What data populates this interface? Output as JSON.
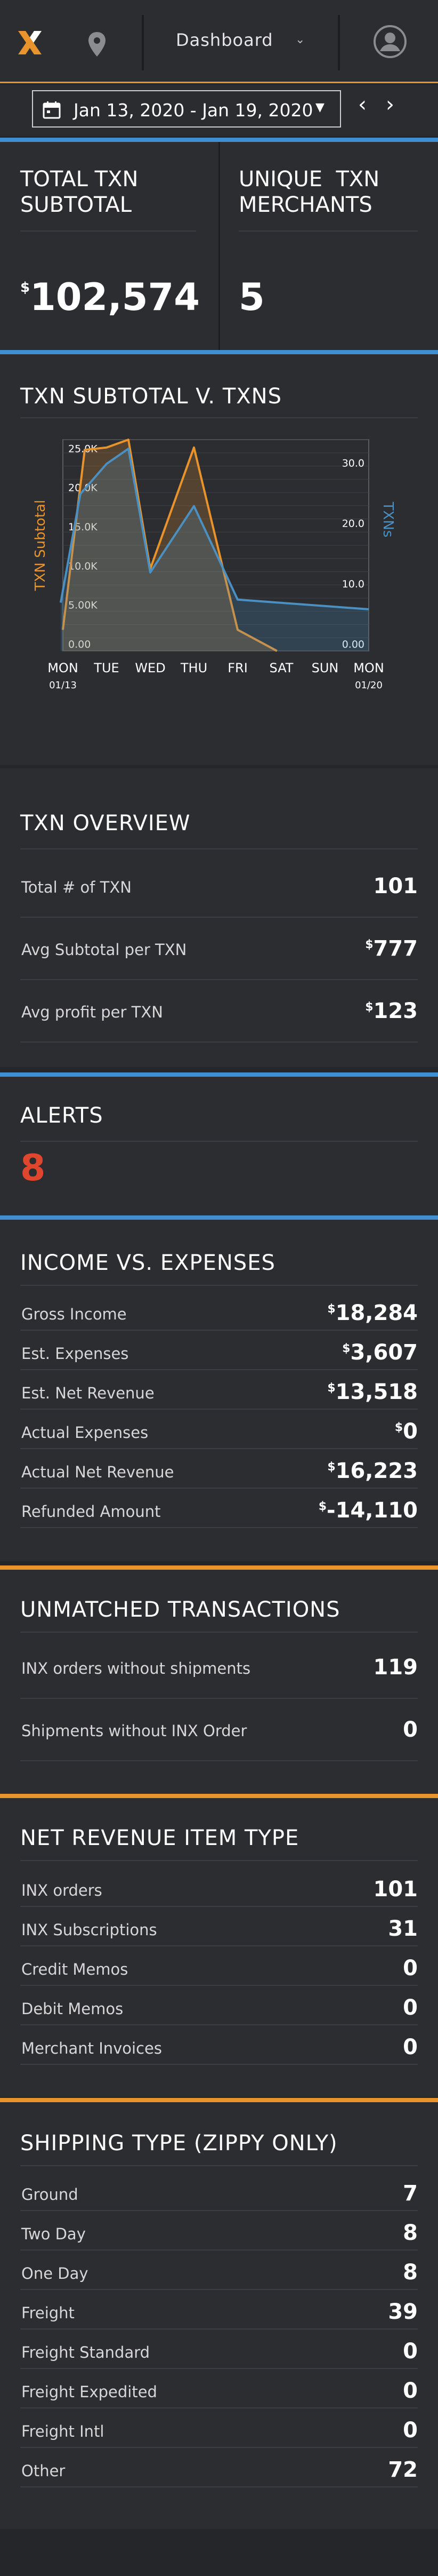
{
  "header": {
    "dashboard_label": "Dashboard",
    "icons": [
      "logo-icon",
      "location-pin-icon",
      "chevron-down-icon",
      "user-avatar-icon"
    ]
  },
  "date_range": {
    "label": "Jan 13, 2020 - Jan 19, 2020",
    "icons": [
      "calendar-icon",
      "caret-down-icon",
      "chevron-left-icon",
      "chevron-right-icon"
    ]
  },
  "kpis": {
    "subtotal": {
      "title_line1": "TOTAL TXN",
      "title_line2": "SUBTOTAL",
      "currency": "$",
      "value": "102,574"
    },
    "merchants": {
      "title_line1": "UNIQUE  TXN",
      "title_line2": "MERCHANTS",
      "value": "5"
    }
  },
  "chart_section": {
    "title": "TXN SUBTOTAL V. TXNS"
  },
  "chart_data": {
    "type": "line",
    "x": [
      "MON 01/13",
      "TUE",
      "WED",
      "THU",
      "FRI",
      "SAT",
      "SUN",
      "MON 01/20"
    ],
    "x_ticks": [
      {
        "line1": "MON",
        "line2": "01/13"
      },
      {
        "line1": "TUE",
        "line2": ""
      },
      {
        "line1": "WED",
        "line2": ""
      },
      {
        "line1": "THU",
        "line2": ""
      },
      {
        "line1": "FRI",
        "line2": ""
      },
      {
        "line1": "SAT",
        "line2": ""
      },
      {
        "line1": "SUN",
        "line2": ""
      },
      {
        "line1": "MON",
        "line2": "01/20"
      }
    ],
    "ylabel_left": "TXN Subtotal",
    "ylabel_right": "TXNs",
    "ylim_left": [
      0,
      27000
    ],
    "ylim_right": [
      0,
      35
    ],
    "yticks_left": [
      "0.00",
      "5.00K",
      "10.0K",
      "15.0K",
      "20.0K",
      "25.0K"
    ],
    "yticks_right": [
      "0.00",
      "10.0",
      "20.0",
      "30.0"
    ],
    "yticks_left_values": [
      0,
      5000,
      10000,
      15000,
      20000,
      25000
    ],
    "yticks_right_values": [
      0,
      10,
      20,
      30
    ],
    "grid": true,
    "series": [
      {
        "name": "TXN Subtotal",
        "axis": "left",
        "color": "#e8932c",
        "points": [
          [
            0,
            2700
          ],
          [
            0.5,
            25700
          ],
          [
            1.0,
            26000
          ],
          [
            1.5,
            27000
          ],
          [
            2.0,
            10500
          ],
          [
            3.0,
            26000
          ],
          [
            4.0,
            2700
          ],
          [
            4.9,
            0
          ]
        ]
      },
      {
        "name": "TXNs",
        "axis": "right",
        "color": "#4a90c2",
        "points": [
          [
            -0.05,
            8
          ],
          [
            0.4,
            26
          ],
          [
            1.0,
            31
          ],
          [
            1.5,
            33.5
          ],
          [
            2.0,
            13
          ],
          [
            3.0,
            24
          ],
          [
            4.0,
            8.5
          ],
          [
            7.0,
            6.9
          ]
        ]
      }
    ]
  },
  "overview": {
    "title": "TXN OVERVIEW",
    "rows": [
      {
        "label": "Total # of TXN",
        "prefix": "",
        "value": "101"
      },
      {
        "label": "Avg Subtotal per TXN",
        "prefix": "$",
        "value": "777"
      },
      {
        "label": "Avg profit per TXN",
        "prefix": "$",
        "value": "123"
      }
    ]
  },
  "alerts": {
    "title": "ALERTS",
    "count": "8",
    "count_color": "#e0452d"
  },
  "income": {
    "title": "INCOME VS. EXPENSES",
    "rows": [
      {
        "label": "Gross Income",
        "prefix": "$",
        "value": "18,284"
      },
      {
        "label": "Est. Expenses",
        "prefix": "$",
        "value": "3,607"
      },
      {
        "label": "Est. Net Revenue",
        "prefix": "$",
        "value": "13,518"
      },
      {
        "label": "Actual Expenses",
        "prefix": "$",
        "value": "0"
      },
      {
        "label": "Actual Net Revenue",
        "prefix": "$",
        "value": "16,223"
      },
      {
        "label": "Refunded Amount",
        "prefix": "$",
        "value": "-14,110"
      }
    ]
  },
  "unmatched": {
    "title": "UNMATCHED TRANSACTIONS",
    "rows": [
      {
        "label": "INX orders without shipments",
        "prefix": "",
        "value": "119"
      },
      {
        "label": "Shipments without INX Order",
        "prefix": "",
        "value": "0"
      }
    ]
  },
  "net_revenue": {
    "title": "NET REVENUE ITEM TYPE",
    "rows": [
      {
        "label": "INX orders",
        "prefix": "",
        "value": "101"
      },
      {
        "label": "INX Subscriptions",
        "prefix": "",
        "value": "31"
      },
      {
        "label": "Credit Memos",
        "prefix": "",
        "value": "0"
      },
      {
        "label": "Debit Memos",
        "prefix": "",
        "value": "0"
      },
      {
        "label": "Merchant Invoices",
        "prefix": "",
        "value": "0"
      }
    ]
  },
  "shipping": {
    "title": "SHIPPING TYPE (ZIPPY ONLY)",
    "rows": [
      {
        "label": "Ground",
        "prefix": "",
        "value": "7"
      },
      {
        "label": "Two Day",
        "prefix": "",
        "value": "8"
      },
      {
        "label": "One Day",
        "prefix": "",
        "value": "8"
      },
      {
        "label": "Freight",
        "prefix": "",
        "value": "39"
      },
      {
        "label": "Freight Standard",
        "prefix": "",
        "value": "0"
      },
      {
        "label": "Freight Expedited",
        "prefix": "",
        "value": "0"
      },
      {
        "label": "Freight Intl",
        "prefix": "",
        "value": "0"
      },
      {
        "label": "Other",
        "prefix": "",
        "value": "72"
      }
    ]
  },
  "colors": {
    "accent_blue": "#3f8fd2",
    "accent_orange": "#e8932c",
    "background": "#24262a",
    "panel": "#2b2d31"
  }
}
